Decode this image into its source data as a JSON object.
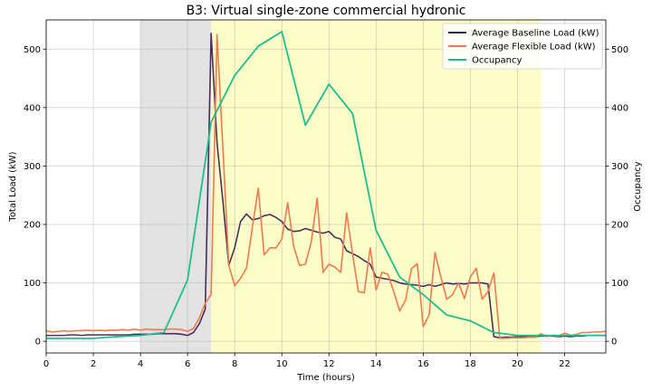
{
  "chart_data": {
    "type": "line",
    "title": "B3: Virtual single-zone commercial hydronic",
    "xlabel": "Time (hours)",
    "ylabel": "Total Load (kW)",
    "y2label": "Occupancy",
    "xlim": [
      0,
      23.75
    ],
    "ylim": [
      -20,
      550
    ],
    "y2lim": [
      -20,
      550
    ],
    "x_ticks": [
      0,
      2,
      4,
      6,
      8,
      10,
      12,
      14,
      16,
      18,
      20,
      22
    ],
    "y_ticks": [
      0,
      100,
      200,
      300,
      400,
      500
    ],
    "y2_ticks": [
      0,
      100,
      200,
      300,
      400,
      500
    ],
    "grid": true,
    "legend_position": "top-right",
    "shaded_regions": [
      {
        "x_start": 4,
        "x_end": 7,
        "color": "#e3e3e3"
      },
      {
        "x_start": 7,
        "x_end": 21,
        "color": "#fdfdc8"
      }
    ],
    "series": [
      {
        "name": "Average Baseline Load (kW)",
        "color": "#3b1f4f",
        "axis": "left",
        "points": [
          [
            0,
            10
          ],
          [
            0.25,
            10
          ],
          [
            0.5,
            10
          ],
          [
            0.75,
            10
          ],
          [
            1,
            11
          ],
          [
            1.25,
            11
          ],
          [
            1.5,
            10
          ],
          [
            1.75,
            11
          ],
          [
            2,
            11
          ],
          [
            2.25,
            11
          ],
          [
            2.5,
            11
          ],
          [
            2.75,
            11
          ],
          [
            3,
            11
          ],
          [
            3.25,
            11
          ],
          [
            3.5,
            11
          ],
          [
            3.75,
            12
          ],
          [
            4,
            12
          ],
          [
            4.25,
            12
          ],
          [
            4.5,
            12
          ],
          [
            4.75,
            13
          ],
          [
            5,
            13
          ],
          [
            5.25,
            13
          ],
          [
            5.5,
            13
          ],
          [
            5.75,
            12
          ],
          [
            6,
            10
          ],
          [
            6.25,
            15
          ],
          [
            6.5,
            30
          ],
          [
            6.75,
            55
          ],
          [
            7,
            527
          ],
          [
            7.25,
            340
          ],
          [
            7.5,
            240
          ],
          [
            7.75,
            130
          ],
          [
            8,
            160
          ],
          [
            8.25,
            205
          ],
          [
            8.5,
            218
          ],
          [
            8.75,
            208
          ],
          [
            9,
            210
          ],
          [
            9.25,
            215
          ],
          [
            9.5,
            217
          ],
          [
            9.75,
            212
          ],
          [
            10,
            205
          ],
          [
            10.25,
            192
          ],
          [
            10.5,
            188
          ],
          [
            10.75,
            189
          ],
          [
            11,
            193
          ],
          [
            11.25,
            190
          ],
          [
            11.5,
            187
          ],
          [
            11.75,
            185
          ],
          [
            12,
            188
          ],
          [
            12.25,
            178
          ],
          [
            12.5,
            175
          ],
          [
            12.75,
            155
          ],
          [
            13,
            150
          ],
          [
            13.25,
            145
          ],
          [
            13.5,
            138
          ],
          [
            13.75,
            132
          ],
          [
            14,
            110
          ],
          [
            14.25,
            108
          ],
          [
            14.5,
            106
          ],
          [
            14.75,
            104
          ],
          [
            15,
            100
          ],
          [
            15.25,
            98
          ],
          [
            15.5,
            97
          ],
          [
            15.75,
            96
          ],
          [
            16,
            94
          ],
          [
            16.25,
            97
          ],
          [
            16.5,
            94
          ],
          [
            16.75,
            97
          ],
          [
            17,
            100
          ],
          [
            17.25,
            98
          ],
          [
            17.5,
            99
          ],
          [
            17.75,
            98
          ],
          [
            18,
            100
          ],
          [
            18.25,
            100
          ],
          [
            18.5,
            100
          ],
          [
            18.75,
            98
          ],
          [
            19,
            8
          ],
          [
            19.25,
            6
          ],
          [
            19.5,
            7
          ],
          [
            19.75,
            7
          ],
          [
            20,
            8
          ],
          [
            20.25,
            8
          ],
          [
            20.5,
            8
          ],
          [
            20.75,
            8
          ],
          [
            21,
            9
          ],
          [
            21.25,
            9
          ],
          [
            21.5,
            9
          ],
          [
            21.75,
            8
          ],
          [
            22,
            9
          ],
          [
            22.25,
            8
          ],
          [
            22.5,
            9
          ],
          [
            22.75,
            9
          ],
          [
            23,
            10
          ],
          [
            23.25,
            10
          ],
          [
            23.5,
            10
          ],
          [
            23.75,
            10
          ]
        ]
      },
      {
        "name": "Average Flexible Load (kW)",
        "color": "#f07a4f",
        "axis": "left",
        "points": [
          [
            0,
            18
          ],
          [
            0.25,
            16
          ],
          [
            0.5,
            17
          ],
          [
            0.75,
            18
          ],
          [
            1,
            17
          ],
          [
            1.25,
            18
          ],
          [
            1.5,
            18
          ],
          [
            1.75,
            19
          ],
          [
            2,
            18
          ],
          [
            2.25,
            19
          ],
          [
            2.5,
            18
          ],
          [
            2.75,
            19
          ],
          [
            3,
            19
          ],
          [
            3.25,
            20
          ],
          [
            3.5,
            19
          ],
          [
            3.75,
            21
          ],
          [
            4,
            19
          ],
          [
            4.25,
            21
          ],
          [
            4.5,
            20
          ],
          [
            4.75,
            20
          ],
          [
            5,
            20
          ],
          [
            5.25,
            21
          ],
          [
            5.5,
            21
          ],
          [
            5.75,
            20
          ],
          [
            6,
            17
          ],
          [
            6.25,
            22
          ],
          [
            6.5,
            40
          ],
          [
            6.75,
            65
          ],
          [
            7,
            80
          ],
          [
            7.25,
            525
          ],
          [
            7.5,
            330
          ],
          [
            7.75,
            130
          ],
          [
            8,
            95
          ],
          [
            8.25,
            108
          ],
          [
            8.5,
            125
          ],
          [
            8.75,
            195
          ],
          [
            9,
            262
          ],
          [
            9.25,
            148
          ],
          [
            9.5,
            160
          ],
          [
            9.75,
            160
          ],
          [
            10,
            175
          ],
          [
            10.25,
            237
          ],
          [
            10.5,
            163
          ],
          [
            10.75,
            130
          ],
          [
            11,
            132
          ],
          [
            11.25,
            170
          ],
          [
            11.5,
            245
          ],
          [
            11.75,
            118
          ],
          [
            12,
            132
          ],
          [
            12.25,
            127
          ],
          [
            12.5,
            118
          ],
          [
            12.75,
            220
          ],
          [
            13,
            150
          ],
          [
            13.25,
            85
          ],
          [
            13.5,
            83
          ],
          [
            13.75,
            160
          ],
          [
            14,
            88
          ],
          [
            14.25,
            118
          ],
          [
            14.5,
            115
          ],
          [
            14.75,
            85
          ],
          [
            15,
            52
          ],
          [
            15.25,
            70
          ],
          [
            15.5,
            124
          ],
          [
            15.75,
            133
          ],
          [
            16,
            25
          ],
          [
            16.25,
            45
          ],
          [
            16.5,
            152
          ],
          [
            16.75,
            110
          ],
          [
            17,
            72
          ],
          [
            17.25,
            80
          ],
          [
            17.5,
            100
          ],
          [
            17.75,
            73
          ],
          [
            18,
            110
          ],
          [
            18.25,
            125
          ],
          [
            18.5,
            72
          ],
          [
            18.75,
            85
          ],
          [
            19,
            117
          ],
          [
            19.25,
            5
          ],
          [
            19.5,
            5
          ],
          [
            19.75,
            6
          ],
          [
            20,
            6
          ],
          [
            20.25,
            6
          ],
          [
            20.5,
            7
          ],
          [
            20.75,
            7
          ],
          [
            21,
            13
          ],
          [
            21.25,
            8
          ],
          [
            21.5,
            10
          ],
          [
            21.75,
            9
          ],
          [
            22,
            14
          ],
          [
            22.25,
            10
          ],
          [
            22.5,
            12
          ],
          [
            22.75,
            15
          ],
          [
            23,
            15
          ],
          [
            23.25,
            16
          ],
          [
            23.5,
            16
          ],
          [
            23.75,
            17
          ]
        ]
      },
      {
        "name": "Occupancy",
        "color": "#1dbf8f",
        "axis": "right",
        "points": [
          [
            0,
            5
          ],
          [
            1,
            5
          ],
          [
            2,
            5
          ],
          [
            3,
            8
          ],
          [
            4,
            10
          ],
          [
            5,
            15
          ],
          [
            6,
            105
          ],
          [
            7,
            375
          ],
          [
            8,
            455
          ],
          [
            9,
            505
          ],
          [
            10,
            530
          ],
          [
            11,
            370
          ],
          [
            12,
            440
          ],
          [
            13,
            390
          ],
          [
            14,
            190
          ],
          [
            15,
            110
          ],
          [
            16,
            80
          ],
          [
            17,
            45
          ],
          [
            18,
            35
          ],
          [
            19,
            15
          ],
          [
            20,
            10
          ],
          [
            21,
            10
          ],
          [
            22,
            10
          ],
          [
            23,
            10
          ],
          [
            23.75,
            10
          ]
        ]
      }
    ]
  }
}
